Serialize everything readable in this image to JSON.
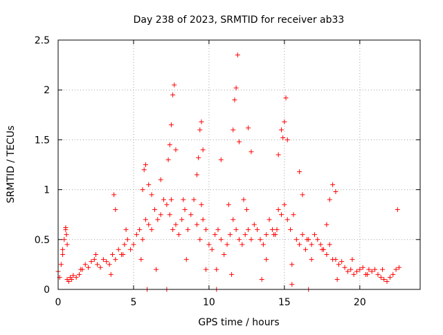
{
  "chart_data": {
    "type": "scatter",
    "title": "Day 238 of 2023, SRMTID for receiver ab33",
    "xlabel": "GPS time / hours",
    "ylabel": "SRMTID / TECUs",
    "xlim": [
      0,
      24
    ],
    "ylim": [
      0,
      2.5
    ],
    "x_ticks": [
      "0",
      "5",
      "10",
      "15",
      "20"
    ],
    "y_ticks": [
      "0",
      "0.5",
      "1",
      "1.5",
      "2",
      "2.5"
    ],
    "grid": true,
    "marker": "+",
    "marker_color": "#ff0000",
    "series": [
      {
        "name": "ab33",
        "x": [
          0.0,
          0.1,
          0.2,
          0.3,
          0.4,
          0.5,
          0.6,
          0.7,
          0.8,
          0.9,
          1.0,
          1.2,
          1.4,
          1.6,
          1.8,
          2.0,
          2.2,
          2.4,
          2.6,
          2.8,
          3.0,
          3.2,
          3.4,
          3.6,
          3.8,
          4.0,
          4.2,
          4.4,
          4.6,
          4.8,
          5.0,
          5.2,
          5.4,
          5.6,
          5.8,
          6.0,
          6.2,
          6.4,
          6.6,
          6.8,
          7.0,
          7.2,
          7.4,
          7.6,
          7.8,
          8.0,
          8.2,
          8.4,
          8.6,
          8.8,
          9.0,
          9.2,
          9.4,
          9.6,
          9.8,
          10.0,
          10.2,
          10.4,
          10.6,
          10.8,
          11.0,
          11.2,
          11.4,
          11.6,
          11.8,
          12.0,
          12.2,
          12.4,
          12.6,
          12.8,
          13.0,
          13.2,
          13.4,
          13.6,
          13.8,
          14.0,
          14.2,
          14.4,
          14.6,
          14.8,
          15.0,
          15.2,
          15.4,
          15.6,
          15.8,
          16.0,
          16.2,
          16.4,
          16.6,
          16.8,
          17.0,
          17.2,
          17.4,
          17.6,
          17.8,
          18.0,
          18.2,
          18.4,
          18.6,
          18.8,
          19.0,
          19.2,
          19.4,
          19.6,
          19.8,
          20.0,
          20.2,
          20.4,
          20.6,
          20.8,
          21.0,
          21.2,
          21.4,
          21.6,
          21.8,
          22.0,
          22.2,
          22.4,
          22.6,
          0.5,
          0.55,
          0.6,
          3.7,
          3.8,
          5.6,
          5.7,
          5.8,
          6.0,
          6.2,
          7.3,
          7.4,
          7.5,
          7.6,
          7.7,
          7.8,
          9.2,
          9.3,
          9.4,
          9.5,
          9.6,
          10.8,
          11.6,
          11.7,
          11.8,
          11.9,
          12.0,
          12.6,
          12.8,
          14.6,
          14.8,
          14.9,
          15.0,
          15.1,
          15.2,
          16.0,
          16.2,
          18.0,
          18.2,
          18.4,
          5.9,
          7.2,
          10.5,
          15.5,
          16.6,
          0.3,
          1.5,
          2.5,
          3.5,
          4.5,
          5.5,
          6.5,
          7.5,
          8.5,
          9.5,
          10.5,
          11.5,
          12.5,
          13.5,
          14.5,
          15.5,
          16.5,
          17.5,
          18.5,
          19.5,
          20.5,
          21.5,
          22.5,
          4.3,
          6.8,
          8.3,
          9.8,
          11.3,
          12.3,
          13.8,
          14.3,
          16.8,
          17.8
        ],
        "y": [
          0.18,
          0.12,
          0.25,
          0.35,
          0.5,
          0.62,
          0.1,
          0.08,
          0.12,
          0.1,
          0.14,
          0.12,
          0.15,
          0.2,
          0.25,
          0.22,
          0.28,
          0.3,
          0.25,
          0.22,
          0.3,
          0.28,
          0.25,
          0.35,
          0.3,
          0.4,
          0.35,
          0.45,
          0.5,
          0.4,
          0.45,
          0.55,
          0.6,
          0.5,
          0.7,
          0.65,
          0.6,
          0.8,
          0.7,
          0.75,
          0.9,
          0.85,
          0.75,
          0.6,
          0.65,
          0.55,
          0.7,
          0.8,
          0.6,
          0.75,
          0.9,
          0.65,
          0.5,
          0.7,
          0.6,
          0.45,
          0.4,
          0.55,
          0.6,
          0.5,
          0.35,
          0.45,
          0.55,
          0.7,
          0.6,
          0.5,
          0.45,
          0.55,
          0.6,
          0.5,
          0.65,
          0.6,
          0.5,
          0.45,
          0.55,
          0.7,
          0.6,
          0.55,
          0.8,
          0.75,
          0.85,
          0.7,
          0.6,
          0.75,
          0.5,
          0.45,
          0.55,
          0.4,
          0.5,
          0.45,
          0.55,
          0.5,
          0.45,
          0.4,
          0.35,
          0.45,
          0.3,
          0.3,
          0.25,
          0.28,
          0.22,
          0.18,
          0.2,
          0.15,
          0.18,
          0.2,
          0.22,
          0.15,
          0.2,
          0.18,
          0.2,
          0.15,
          0.12,
          0.1,
          0.08,
          0.12,
          0.15,
          0.2,
          0.22,
          0.6,
          0.55,
          0.45,
          0.95,
          0.8,
          1.0,
          1.2,
          1.25,
          1.05,
          0.95,
          1.3,
          1.45,
          1.65,
          1.95,
          2.05,
          1.4,
          1.15,
          1.32,
          1.6,
          1.68,
          1.4,
          1.3,
          1.6,
          1.9,
          2.02,
          2.35,
          1.48,
          1.62,
          1.38,
          1.35,
          1.6,
          1.52,
          1.68,
          1.92,
          1.5,
          1.18,
          0.95,
          0.9,
          1.05,
          0.98,
          0.0,
          0.0,
          0.0,
          0.05,
          0.0,
          0.4,
          0.2,
          0.35,
          0.15,
          0.6,
          0.3,
          0.2,
          0.9,
          0.3,
          0.85,
          0.2,
          0.15,
          0.8,
          0.1,
          0.6,
          0.25,
          0.5,
          0.4,
          0.1,
          0.3,
          0.15,
          0.2,
          0.8,
          0.35,
          1.1,
          0.9,
          0.2,
          0.85,
          0.9,
          0.3,
          0.55,
          0.3,
          0.65
        ]
      }
    ]
  }
}
